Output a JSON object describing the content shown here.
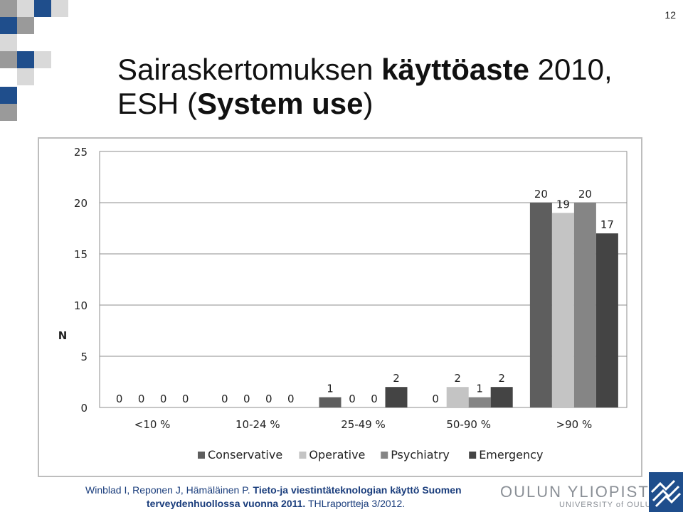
{
  "slide": {
    "page_number": "12",
    "title_part1": "Sairaskertomuksen ",
    "title_bold1": "käyttöaste",
    "title_part2": " 2010,",
    "title_part3": "ESH (",
    "title_bold2": "System use",
    "title_part4": ")"
  },
  "citation": {
    "authors": "Winblad I, Reponen J, Hämäläinen P. ",
    "title_a": "Tieto-ja viestintäteknologian käyttö Suomen",
    "title_b": "terveydenhuollossa vuonna 2011.",
    "series": " THLraportteja 3/2012."
  },
  "university": {
    "name_fi": "OULUN YLIOPISTO",
    "name_en": "UNIVERSITY of OULU"
  },
  "colors": {
    "Conservative": "#5e5e5e",
    "Operative": "#c4c4c4",
    "Psychiatry": "#858585",
    "Emergency": "#444444",
    "blue": "#1f4e8c",
    "grey": "#9a9a9a"
  },
  "chart_data": {
    "type": "bar",
    "categories": [
      "<10 %",
      "10-24 %",
      "25-49 %",
      "50-90 %",
      ">90 %"
    ],
    "series": [
      {
        "name": "Conservative",
        "values": [
          0,
          0,
          1,
          0,
          20
        ]
      },
      {
        "name": "Operative",
        "values": [
          0,
          0,
          0,
          2,
          19
        ]
      },
      {
        "name": "Psychiatry",
        "values": [
          0,
          0,
          0,
          1,
          20
        ]
      },
      {
        "name": "Emergency",
        "values": [
          0,
          0,
          2,
          2,
          17
        ]
      }
    ],
    "ylabel": "N",
    "xlabel": "",
    "ylim": [
      0,
      25
    ],
    "yticks": [
      0,
      5,
      10,
      15,
      20,
      25
    ],
    "grid": true,
    "legend_position": "bottom"
  }
}
